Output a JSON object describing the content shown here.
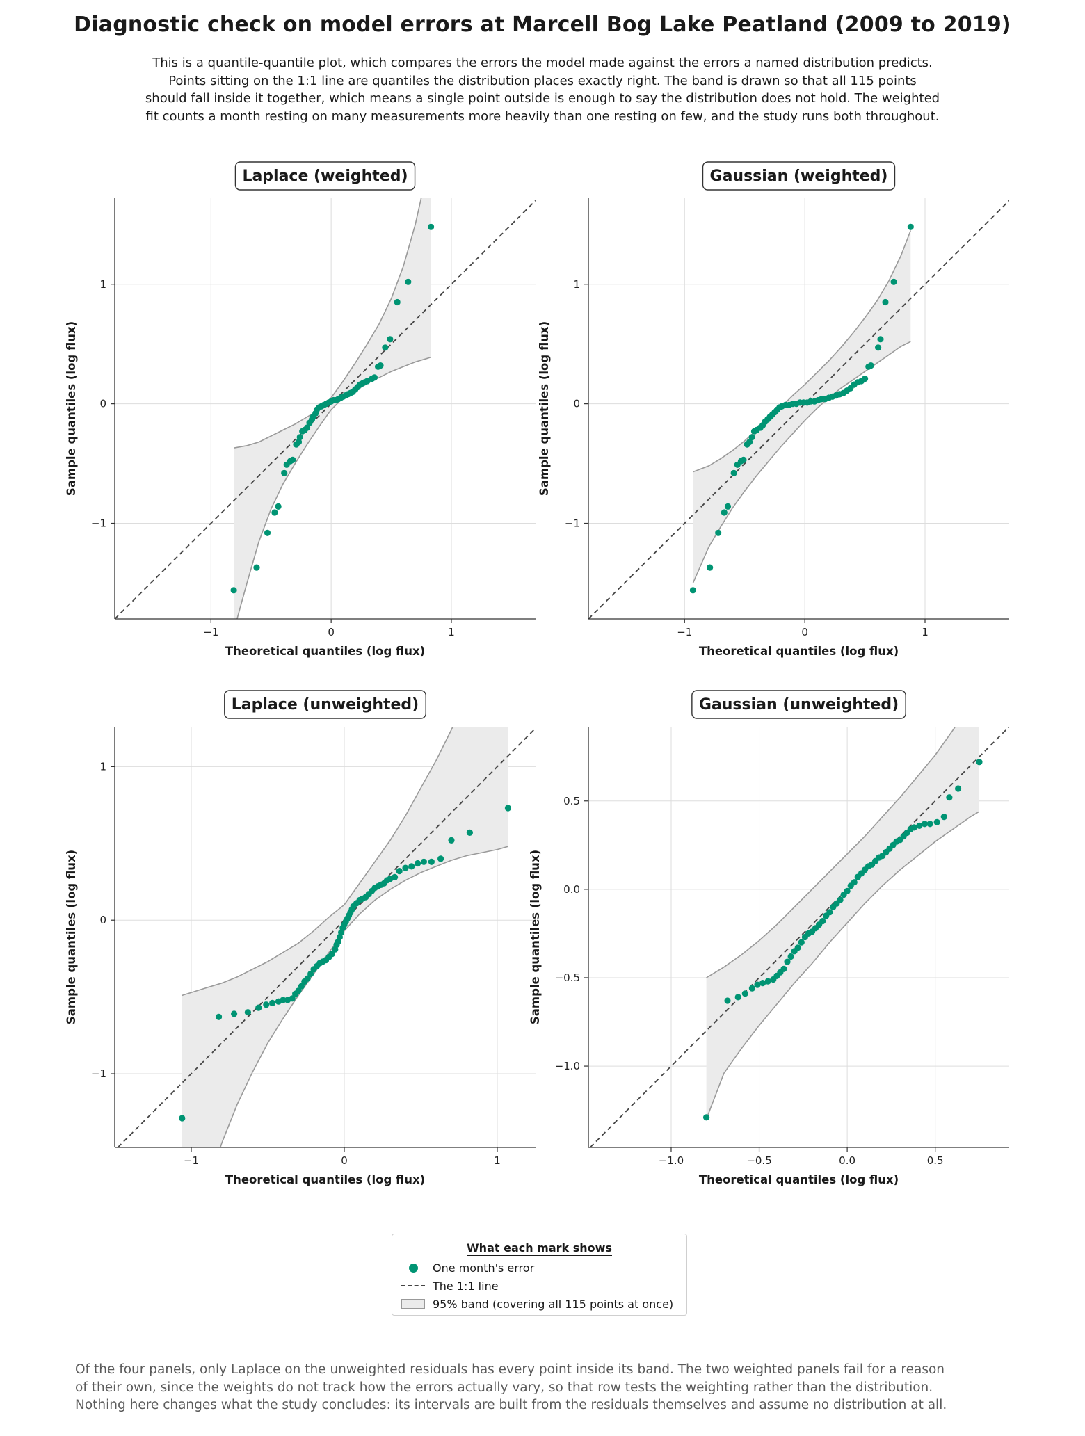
{
  "title": "Diagnostic check on model errors at Marcell Bog Lake Peatland (2009 to 2019)",
  "subtitle_lines": [
    "This is a quantile-quantile plot, which compares the errors the model made against the errors a named distribution predicts.",
    "Points sitting on the 1:1 line are quantiles the distribution places exactly right. The band is drawn so that all 115 points",
    "should fall inside it together, which means a single point outside is enough to say the distribution does not hold. The weighted",
    "fit counts a month resting on many measurements more heavily than one resting on few, and the study runs both throughout."
  ],
  "legend": {
    "title": "What each mark shows",
    "points": "One month's error",
    "line": "The 1:1 line",
    "band": "95% band (covering all 115 points at once)"
  },
  "footer_lines": [
    "Of the four panels, only Laplace on the unweighted residuals has every point inside its band. The two weighted panels fail for a reason",
    "of their own, since the weights do not track how the errors actually vary, so that row tests the weighting rather than the distribution.",
    "Nothing here changes what the study concludes: its intervals are built from the residuals themselves and assume no distribution at all."
  ],
  "colors": {
    "points": "#009473",
    "band_fill": "#ebebeb",
    "band_edge": "#9a9a9a",
    "ref_line": "#444444",
    "grid": "#dddddd"
  },
  "chart_data": [
    {
      "type": "scatter",
      "title": "Laplace (weighted)",
      "xlabel": "Theoretical quantiles (log flux)",
      "ylabel": "Sample quantiles (log flux)",
      "xlim": [
        -1.8,
        1.7
      ],
      "ylim": [
        -1.8,
        1.72
      ],
      "xticks": [
        -1,
        0,
        1
      ],
      "xtick_labels": [
        "−1",
        "0",
        "1"
      ],
      "yticks": [
        -1,
        0,
        1
      ],
      "ytick_labels": [
        "−1",
        "0",
        "1"
      ],
      "grid": true,
      "points": [
        [
          -0.81,
          -1.56
        ],
        [
          -0.62,
          -1.37
        ],
        [
          -0.53,
          -1.08
        ],
        [
          -0.47,
          -0.91
        ],
        [
          -0.44,
          -0.86
        ],
        [
          -0.39,
          -0.58
        ],
        [
          -0.37,
          -0.51
        ],
        [
          -0.34,
          -0.48
        ],
        [
          -0.32,
          -0.47
        ],
        [
          -0.29,
          -0.34
        ],
        [
          -0.27,
          -0.32
        ],
        [
          -0.26,
          -0.28
        ],
        [
          -0.24,
          -0.23
        ],
        [
          -0.22,
          -0.22
        ],
        [
          -0.2,
          -0.2
        ],
        [
          -0.18,
          -0.16
        ],
        [
          -0.16,
          -0.13
        ],
        [
          -0.15,
          -0.11
        ],
        [
          -0.13,
          -0.08
        ],
        [
          -0.12,
          -0.05
        ],
        [
          -0.1,
          -0.03
        ],
        [
          -0.08,
          -0.02
        ],
        [
          -0.06,
          -0.01
        ],
        [
          -0.04,
          0.0
        ],
        [
          -0.02,
          0.01
        ],
        [
          0.0,
          0.02
        ],
        [
          0.02,
          0.03
        ],
        [
          0.04,
          0.03
        ],
        [
          0.06,
          0.04
        ],
        [
          0.08,
          0.05
        ],
        [
          0.1,
          0.06
        ],
        [
          0.12,
          0.07
        ],
        [
          0.14,
          0.08
        ],
        [
          0.16,
          0.09
        ],
        [
          0.18,
          0.1
        ],
        [
          0.2,
          0.12
        ],
        [
          0.22,
          0.14
        ],
        [
          0.24,
          0.16
        ],
        [
          0.26,
          0.17
        ],
        [
          0.28,
          0.18
        ],
        [
          0.3,
          0.19
        ],
        [
          0.34,
          0.21
        ],
        [
          0.36,
          0.22
        ],
        [
          0.39,
          0.31
        ],
        [
          0.41,
          0.32
        ],
        [
          0.45,
          0.47
        ],
        [
          0.49,
          0.54
        ],
        [
          0.55,
          0.85
        ],
        [
          0.64,
          1.02
        ],
        [
          0.83,
          1.48
        ]
      ],
      "band": {
        "x": [
          -0.81,
          -0.7,
          -0.6,
          -0.5,
          -0.4,
          -0.3,
          -0.2,
          -0.1,
          0,
          0.1,
          0.2,
          0.3,
          0.4,
          0.5,
          0.6,
          0.7,
          0.8,
          0.83
        ],
        "lower": [
          -1.9,
          -1.5,
          -1.15,
          -0.88,
          -0.67,
          -0.5,
          -0.34,
          -0.19,
          -0.05,
          0.05,
          0.11,
          0.17,
          0.22,
          0.27,
          0.31,
          0.35,
          0.38,
          0.39
        ],
        "upper": [
          -0.37,
          -0.35,
          -0.32,
          -0.27,
          -0.22,
          -0.17,
          -0.11,
          -0.05,
          0.05,
          0.19,
          0.34,
          0.5,
          0.67,
          0.88,
          1.15,
          1.5,
          1.95,
          2.1
        ]
      }
    },
    {
      "type": "scatter",
      "title": "Gaussian (weighted)",
      "xlabel": "Theoretical quantiles (log flux)",
      "ylabel": "Sample quantiles (log flux)",
      "xlim": [
        -1.8,
        1.7
      ],
      "ylim": [
        -1.8,
        1.72
      ],
      "xticks": [
        -1,
        0,
        1
      ],
      "xtick_labels": [
        "−1",
        "0",
        "1"
      ],
      "yticks": [
        -1,
        0,
        1
      ],
      "ytick_labels": [
        "−1",
        "0",
        "1"
      ],
      "grid": true,
      "points": [
        [
          -0.93,
          -1.56
        ],
        [
          -0.79,
          -1.37
        ],
        [
          -0.72,
          -1.08
        ],
        [
          -0.67,
          -0.91
        ],
        [
          -0.64,
          -0.86
        ],
        [
          -0.59,
          -0.58
        ],
        [
          -0.56,
          -0.51
        ],
        [
          -0.53,
          -0.48
        ],
        [
          -0.51,
          -0.47
        ],
        [
          -0.48,
          -0.34
        ],
        [
          -0.46,
          -0.32
        ],
        [
          -0.44,
          -0.28
        ],
        [
          -0.42,
          -0.23
        ],
        [
          -0.4,
          -0.22
        ],
        [
          -0.37,
          -0.2
        ],
        [
          -0.35,
          -0.18
        ],
        [
          -0.33,
          -0.15
        ],
        [
          -0.31,
          -0.13
        ],
        [
          -0.29,
          -0.11
        ],
        [
          -0.27,
          -0.09
        ],
        [
          -0.25,
          -0.07
        ],
        [
          -0.23,
          -0.05
        ],
        [
          -0.21,
          -0.03
        ],
        [
          -0.19,
          -0.02
        ],
        [
          -0.16,
          -0.01
        ],
        [
          -0.13,
          -0.01
        ],
        [
          -0.1,
          0.0
        ],
        [
          -0.07,
          0.0
        ],
        [
          -0.04,
          0.01
        ],
        [
          -0.01,
          0.01
        ],
        [
          0.02,
          0.01
        ],
        [
          0.05,
          0.02
        ],
        [
          0.08,
          0.02
        ],
        [
          0.11,
          0.03
        ],
        [
          0.14,
          0.04
        ],
        [
          0.17,
          0.04
        ],
        [
          0.2,
          0.05
        ],
        [
          0.23,
          0.06
        ],
        [
          0.26,
          0.07
        ],
        [
          0.29,
          0.08
        ],
        [
          0.32,
          0.09
        ],
        [
          0.35,
          0.11
        ],
        [
          0.38,
          0.13
        ],
        [
          0.41,
          0.16
        ],
        [
          0.44,
          0.18
        ],
        [
          0.47,
          0.19
        ],
        [
          0.5,
          0.21
        ],
        [
          0.53,
          0.31
        ],
        [
          0.55,
          0.32
        ],
        [
          0.61,
          0.47
        ],
        [
          0.63,
          0.54
        ],
        [
          0.67,
          0.85
        ],
        [
          0.74,
          1.02
        ],
        [
          0.88,
          1.48
        ]
      ],
      "band": {
        "x": [
          -0.93,
          -0.8,
          -0.7,
          -0.6,
          -0.5,
          -0.4,
          -0.3,
          -0.2,
          -0.1,
          0,
          0.1,
          0.2,
          0.3,
          0.4,
          0.5,
          0.6,
          0.7,
          0.8,
          0.88
        ],
        "lower": [
          -1.5,
          -1.2,
          -1.03,
          -0.87,
          -0.73,
          -0.6,
          -0.48,
          -0.36,
          -0.25,
          -0.14,
          -0.04,
          0.05,
          0.13,
          0.2,
          0.27,
          0.34,
          0.41,
          0.48,
          0.52
        ],
        "upper": [
          -0.57,
          -0.52,
          -0.46,
          -0.39,
          -0.31,
          -0.22,
          -0.13,
          -0.03,
          0.07,
          0.16,
          0.26,
          0.36,
          0.47,
          0.59,
          0.72,
          0.86,
          1.03,
          1.24,
          1.45
        ]
      }
    },
    {
      "type": "scatter",
      "title": "Laplace (unweighted)",
      "xlabel": "Theoretical quantiles (log flux)",
      "ylabel": "Sample quantiles (log flux)",
      "xlim": [
        -1.5,
        1.25
      ],
      "ylim": [
        -1.48,
        1.26
      ],
      "xticks": [
        -1,
        0,
        1
      ],
      "xtick_labels": [
        "−1",
        "0",
        "1"
      ],
      "yticks": [
        -1,
        0,
        1
      ],
      "ytick_labels": [
        "−1",
        "0",
        "1"
      ],
      "grid": true,
      "points": [
        [
          -1.06,
          -1.29
        ],
        [
          -0.82,
          -0.63
        ],
        [
          -0.72,
          -0.61
        ],
        [
          -0.63,
          -0.6
        ],
        [
          -0.56,
          -0.57
        ],
        [
          -0.51,
          -0.55
        ],
        [
          -0.47,
          -0.54
        ],
        [
          -0.43,
          -0.53
        ],
        [
          -0.4,
          -0.52
        ],
        [
          -0.37,
          -0.52
        ],
        [
          -0.34,
          -0.51
        ],
        [
          -0.32,
          -0.48
        ],
        [
          -0.3,
          -0.46
        ],
        [
          -0.28,
          -0.43
        ],
        [
          -0.26,
          -0.4
        ],
        [
          -0.24,
          -0.38
        ],
        [
          -0.22,
          -0.35
        ],
        [
          -0.2,
          -0.32
        ],
        [
          -0.18,
          -0.3
        ],
        [
          -0.16,
          -0.28
        ],
        [
          -0.14,
          -0.27
        ],
        [
          -0.12,
          -0.26
        ],
        [
          -0.1,
          -0.24
        ],
        [
          -0.08,
          -0.22
        ],
        [
          -0.06,
          -0.19
        ],
        [
          -0.05,
          -0.16
        ],
        [
          -0.04,
          -0.14
        ],
        [
          -0.03,
          -0.11
        ],
        [
          -0.02,
          -0.08
        ],
        [
          -0.01,
          -0.05
        ],
        [
          0.0,
          -0.03
        ],
        [
          0.01,
          -0.01
        ],
        [
          0.02,
          0.01
        ],
        [
          0.03,
          0.03
        ],
        [
          0.04,
          0.05
        ],
        [
          0.05,
          0.07
        ],
        [
          0.06,
          0.09
        ],
        [
          0.08,
          0.11
        ],
        [
          0.1,
          0.13
        ],
        [
          0.12,
          0.14
        ],
        [
          0.14,
          0.15
        ],
        [
          0.16,
          0.17
        ],
        [
          0.18,
          0.19
        ],
        [
          0.2,
          0.21
        ],
        [
          0.22,
          0.22
        ],
        [
          0.24,
          0.23
        ],
        [
          0.26,
          0.24
        ],
        [
          0.28,
          0.26
        ],
        [
          0.3,
          0.27
        ],
        [
          0.33,
          0.28
        ],
        [
          0.36,
          0.32
        ],
        [
          0.4,
          0.34
        ],
        [
          0.44,
          0.35
        ],
        [
          0.48,
          0.37
        ],
        [
          0.52,
          0.38
        ],
        [
          0.57,
          0.38
        ],
        [
          0.63,
          0.4
        ],
        [
          0.7,
          0.52
        ],
        [
          0.82,
          0.57
        ],
        [
          1.07,
          0.73
        ]
      ],
      "band": {
        "x": [
          -1.06,
          -0.9,
          -0.8,
          -0.7,
          -0.6,
          -0.5,
          -0.4,
          -0.3,
          -0.2,
          -0.1,
          0,
          0.1,
          0.2,
          0.3,
          0.4,
          0.5,
          0.6,
          0.7,
          0.8,
          0.9,
          1.0,
          1.07
        ],
        "lower": [
          -2.3,
          -1.75,
          -1.45,
          -1.2,
          -0.99,
          -0.8,
          -0.64,
          -0.49,
          -0.35,
          -0.21,
          -0.07,
          0.04,
          0.13,
          0.2,
          0.26,
          0.31,
          0.35,
          0.39,
          0.42,
          0.44,
          0.46,
          0.48
        ],
        "upper": [
          -0.49,
          -0.44,
          -0.41,
          -0.37,
          -0.32,
          -0.27,
          -0.21,
          -0.15,
          -0.07,
          0.02,
          0.1,
          0.24,
          0.38,
          0.52,
          0.68,
          0.86,
          1.04,
          1.24,
          1.46,
          1.7,
          1.96,
          2.2
        ]
      }
    },
    {
      "type": "scatter",
      "title": "Gaussian (unweighted)",
      "xlabel": "Theoretical quantiles (log flux)",
      "ylabel": "Sample quantiles (log flux)",
      "xlim": [
        -1.47,
        0.92
      ],
      "ylim": [
        -1.46,
        0.92
      ],
      "xticks": [
        -1.0,
        -0.5,
        0.0,
        0.5
      ],
      "xtick_labels": [
        "−1.0",
        "−0.5",
        "0.0",
        "0.5"
      ],
      "yticks": [
        -1.0,
        -0.5,
        0.0,
        0.5
      ],
      "ytick_labels": [
        "−1.0",
        "−0.5",
        "0.0",
        "0.5"
      ],
      "grid": true,
      "points": [
        [
          -0.8,
          -1.29
        ],
        [
          -0.68,
          -0.63
        ],
        [
          -0.62,
          -0.61
        ],
        [
          -0.58,
          -0.59
        ],
        [
          -0.54,
          -0.56
        ],
        [
          -0.51,
          -0.54
        ],
        [
          -0.48,
          -0.53
        ],
        [
          -0.45,
          -0.52
        ],
        [
          -0.42,
          -0.51
        ],
        [
          -0.4,
          -0.49
        ],
        [
          -0.38,
          -0.47
        ],
        [
          -0.36,
          -0.45
        ],
        [
          -0.34,
          -0.41
        ],
        [
          -0.32,
          -0.38
        ],
        [
          -0.3,
          -0.35
        ],
        [
          -0.28,
          -0.33
        ],
        [
          -0.26,
          -0.3
        ],
        [
          -0.24,
          -0.27
        ],
        [
          -0.22,
          -0.25
        ],
        [
          -0.2,
          -0.24
        ],
        [
          -0.18,
          -0.22
        ],
        [
          -0.16,
          -0.2
        ],
        [
          -0.14,
          -0.18
        ],
        [
          -0.12,
          -0.15
        ],
        [
          -0.1,
          -0.13
        ],
        [
          -0.08,
          -0.1
        ],
        [
          -0.06,
          -0.08
        ],
        [
          -0.04,
          -0.06
        ],
        [
          -0.02,
          -0.03
        ],
        [
          0.0,
          -0.01
        ],
        [
          0.02,
          0.02
        ],
        [
          0.04,
          0.04
        ],
        [
          0.06,
          0.07
        ],
        [
          0.08,
          0.09
        ],
        [
          0.1,
          0.11
        ],
        [
          0.12,
          0.13
        ],
        [
          0.14,
          0.14
        ],
        [
          0.16,
          0.16
        ],
        [
          0.18,
          0.18
        ],
        [
          0.2,
          0.19
        ],
        [
          0.22,
          0.21
        ],
        [
          0.24,
          0.23
        ],
        [
          0.26,
          0.25
        ],
        [
          0.28,
          0.27
        ],
        [
          0.3,
          0.28
        ],
        [
          0.32,
          0.3
        ],
        [
          0.34,
          0.32
        ],
        [
          0.36,
          0.34
        ],
        [
          0.38,
          0.35
        ],
        [
          0.41,
          0.36
        ],
        [
          0.44,
          0.37
        ],
        [
          0.47,
          0.37
        ],
        [
          0.51,
          0.38
        ],
        [
          0.55,
          0.41
        ],
        [
          0.58,
          0.52
        ],
        [
          0.63,
          0.57
        ],
        [
          0.75,
          0.72
        ]
      ],
      "band": {
        "x": [
          -0.8,
          -0.7,
          -0.6,
          -0.5,
          -0.4,
          -0.3,
          -0.2,
          -0.1,
          0,
          0.1,
          0.2,
          0.3,
          0.4,
          0.5,
          0.6,
          0.7,
          0.75
        ],
        "lower": [
          -1.3,
          -1.04,
          -0.9,
          -0.77,
          -0.65,
          -0.53,
          -0.42,
          -0.3,
          -0.19,
          -0.08,
          0.02,
          0.11,
          0.19,
          0.27,
          0.34,
          0.41,
          0.44
        ],
        "upper": [
          -0.5,
          -0.44,
          -0.37,
          -0.29,
          -0.2,
          -0.1,
          0.0,
          0.1,
          0.2,
          0.3,
          0.41,
          0.52,
          0.64,
          0.76,
          0.9,
          1.05,
          1.13
        ]
      }
    }
  ]
}
